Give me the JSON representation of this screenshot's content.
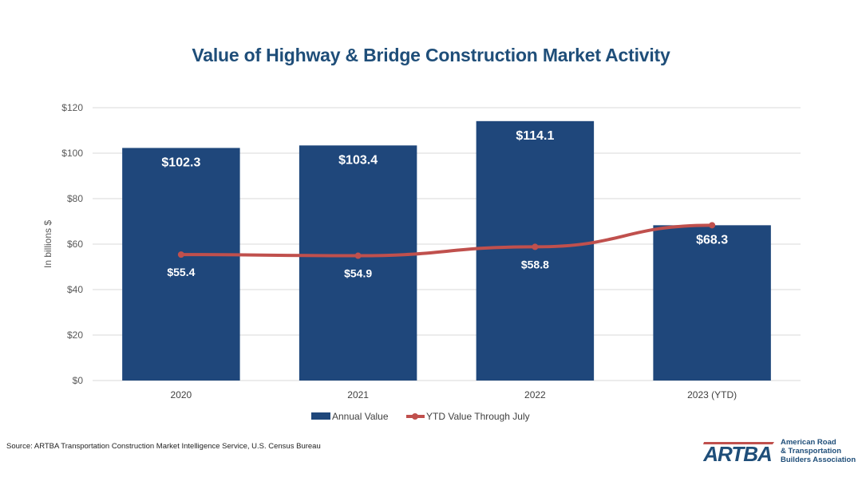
{
  "chart_data": {
    "type": "bar",
    "title": "Value of Highway & Bridge Construction Market Activity",
    "xlabel": "",
    "ylabel": "In billions $",
    "ylim": [
      0,
      120
    ],
    "yticks": [
      0,
      20,
      40,
      60,
      80,
      100,
      120
    ],
    "ytick_labels": [
      "$0",
      "$20",
      "$40",
      "$60",
      "$80",
      "$100",
      "$120"
    ],
    "grid": true,
    "categories": [
      "2020",
      "2021",
      "2022",
      "2023 (YTD)"
    ],
    "series": [
      {
        "name": "Annual Value",
        "type": "bar",
        "color": "#1f477b",
        "values": [
          102.3,
          103.4,
          114.1,
          68.3
        ],
        "labels": [
          "$102.3",
          "$103.4",
          "$114.1",
          "$68.3"
        ]
      },
      {
        "name": "YTD Value Through July",
        "type": "line",
        "color": "#c0504d",
        "values": [
          55.4,
          54.9,
          58.8,
          68.3
        ],
        "labels": [
          "$55.4",
          "$54.9",
          "$58.8",
          ""
        ]
      }
    ],
    "legend_position": "bottom"
  },
  "source": "Source: ARTBA Transportation Construction Market Intelligence Service, U.S. Census Bureau",
  "logo": {
    "mark": "ARTBA",
    "lines": [
      "American Road",
      "& Transportation",
      "Builders Association"
    ]
  }
}
